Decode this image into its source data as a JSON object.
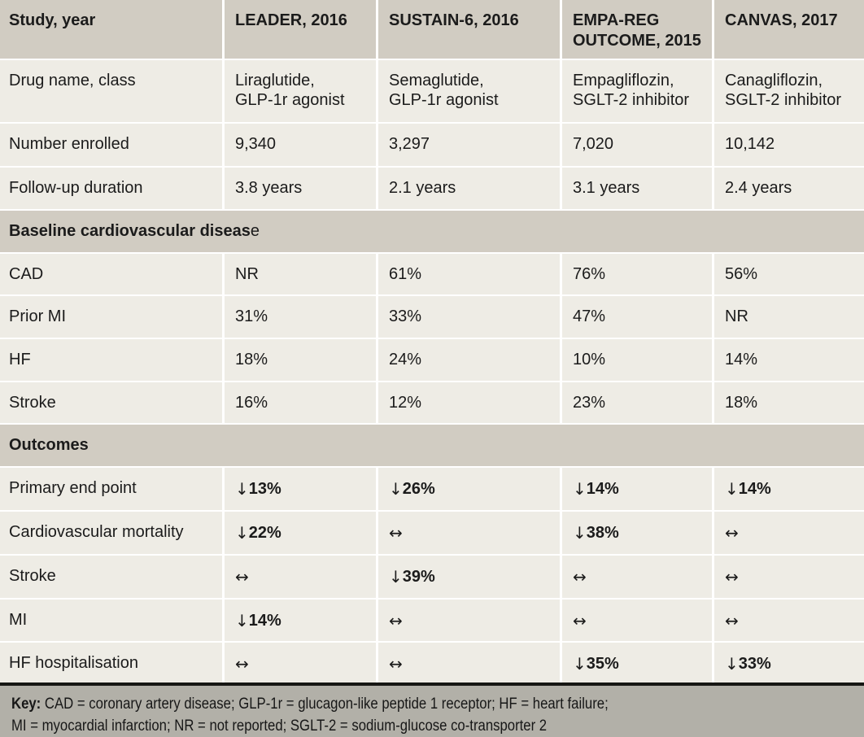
{
  "colors": {
    "header_bg": "#d1ccc2",
    "row_bg": "#eeece5",
    "footer_bg": "#b2b0a8",
    "rule": "#161613",
    "text": "#1b1b1b",
    "separator": "#ffffff"
  },
  "header": {
    "cols": [
      "Study, year",
      "LEADER, 2016",
      "SUSTAIN-6, 2016",
      "EMPA-REG OUTCOME, 2015",
      "CANVAS, 2017"
    ]
  },
  "info_rows": [
    {
      "label": "Drug name, class",
      "values": [
        [
          "Liraglutide,",
          "GLP-1r agonist"
        ],
        [
          "Semaglutide,",
          "GLP-1r agonist"
        ],
        [
          "Empagliflozin,",
          "SGLT-2 inhibitor"
        ],
        [
          "Canagliflozin,",
          "SGLT-2 inhibitor"
        ]
      ]
    },
    {
      "label": "Number enrolled",
      "values": [
        "9,340",
        "3,297",
        "7,020",
        "10,142"
      ]
    },
    {
      "label": "Follow-up duration",
      "values": [
        "3.8 years",
        "2.1 years",
        "3.1 years",
        "2.4 years"
      ]
    }
  ],
  "baseline_section": {
    "title_bold": "Baseline cardiovascular diseas",
    "title_tail": "e",
    "rows": [
      {
        "label": "CAD",
        "values": [
          "NR",
          "61%",
          "76%",
          "56%"
        ]
      },
      {
        "label": "Prior MI",
        "values": [
          "31%",
          "33%",
          "47%",
          "NR"
        ]
      },
      {
        "label": "HF",
        "values": [
          "18%",
          "24%",
          "10%",
          "14%"
        ]
      },
      {
        "label": "Stroke",
        "values": [
          "16%",
          "12%",
          "23%",
          "18%"
        ]
      }
    ]
  },
  "outcomes_section": {
    "title": "Outcomes",
    "rows": [
      {
        "label": "Primary end point",
        "cells": [
          {
            "arrow": "↓",
            "pct": "13%"
          },
          {
            "arrow": "↓",
            "pct": "26%"
          },
          {
            "arrow": "↓",
            "pct": "14%"
          },
          {
            "arrow": "↓",
            "pct": "14%"
          }
        ]
      },
      {
        "label": "Cardiovascular mortality",
        "cells": [
          {
            "arrow": "↓",
            "pct": "22%"
          },
          {
            "arrow": "↔",
            "pct": ""
          },
          {
            "arrow": "↓",
            "pct": "38%"
          },
          {
            "arrow": "↔",
            "pct": ""
          }
        ]
      },
      {
        "label": "Stroke",
        "cells": [
          {
            "arrow": "↔",
            "pct": ""
          },
          {
            "arrow": "↓",
            "pct": "39%"
          },
          {
            "arrow": "↔",
            "pct": ""
          },
          {
            "arrow": "↔",
            "pct": ""
          }
        ]
      },
      {
        "label": "MI",
        "cells": [
          {
            "arrow": "↓",
            "pct": "14%"
          },
          {
            "arrow": "↔",
            "pct": ""
          },
          {
            "arrow": "↔",
            "pct": ""
          },
          {
            "arrow": "↔",
            "pct": ""
          }
        ]
      },
      {
        "label": "HF hospitalisation",
        "cells": [
          {
            "arrow": "↔",
            "pct": ""
          },
          {
            "arrow": "↔",
            "pct": ""
          },
          {
            "arrow": "↓",
            "pct": "35%"
          },
          {
            "arrow": "↓",
            "pct": "33%"
          }
        ]
      }
    ]
  },
  "footer": {
    "key_label": "Key:",
    "line1_rest": " CAD = coronary artery disease; GLP-1r = glucagon-like peptide 1 receptor; HF = heart failure;",
    "line2": "MI = myocardial infarction; NR = not reported; SGLT-2 = sodium-glucose co-transporter 2"
  }
}
